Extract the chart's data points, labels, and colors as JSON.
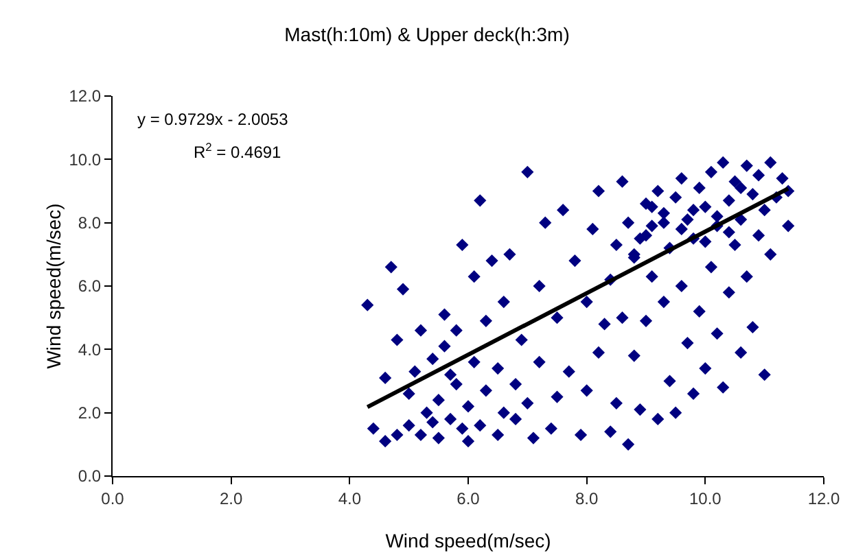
{
  "chart_data": {
    "type": "scatter",
    "title": "Mast(h:10m) & Upper deck(h:3m)",
    "xlabel": "Wind speed(m/sec)",
    "ylabel": "Wind speed(m/sec)",
    "xlim": [
      0,
      12
    ],
    "ylim": [
      0,
      12
    ],
    "xticks": [
      {
        "value": 0,
        "label": "0.0"
      },
      {
        "value": 2,
        "label": "2.0"
      },
      {
        "value": 4,
        "label": "4.0"
      },
      {
        "value": 6,
        "label": "6.0"
      },
      {
        "value": 8,
        "label": "8.0"
      },
      {
        "value": 10,
        "label": "10.0"
      },
      {
        "value": 12,
        "label": "12.0"
      }
    ],
    "yticks": [
      {
        "value": 0,
        "label": "0.0"
      },
      {
        "value": 2,
        "label": "2.0"
      },
      {
        "value": 4,
        "label": "4.0"
      },
      {
        "value": 6,
        "label": "6.0"
      },
      {
        "value": 8,
        "label": "8.0"
      },
      {
        "value": 10,
        "label": "10.0"
      },
      {
        "value": 12,
        "label": "12.0"
      }
    ],
    "grid": false,
    "legend": false,
    "marker": "diamond",
    "annotations": [
      "y = 0.9729x - 2.0053",
      "R$^{2}$ = 0.4691"
    ],
    "series": [
      {
        "color": "#000080",
        "x": [
          4.3,
          4.4,
          4.6,
          4.6,
          4.7,
          4.8,
          4.8,
          4.9,
          5.0,
          5.0,
          5.1,
          5.2,
          5.2,
          5.3,
          5.4,
          5.4,
          5.5,
          5.5,
          5.6,
          5.6,
          5.7,
          5.7,
          5.8,
          5.8,
          5.9,
          5.9,
          6.0,
          6.0,
          6.1,
          6.1,
          6.2,
          6.2,
          6.3,
          6.3,
          6.4,
          6.5,
          6.5,
          6.6,
          6.6,
          6.7,
          6.8,
          6.8,
          6.9,
          7.0,
          7.0,
          7.1,
          7.2,
          7.2,
          7.3,
          7.4,
          7.5,
          7.5,
          7.6,
          7.7,
          7.8,
          7.9,
          8.0,
          8.0,
          8.1,
          8.2,
          8.2,
          8.3,
          8.4,
          8.4,
          8.5,
          8.5,
          8.6,
          8.6,
          8.7,
          8.7,
          8.8,
          8.8,
          8.9,
          8.9,
          9.0,
          9.0,
          9.1,
          9.1,
          9.2,
          9.2,
          9.3,
          9.3,
          9.4,
          9.4,
          9.5,
          9.5,
          9.6,
          9.6,
          9.7,
          9.7,
          9.8,
          9.8,
          9.9,
          9.9,
          10.0,
          10.0,
          10.1,
          10.1,
          10.2,
          10.2,
          10.3,
          10.3,
          10.4,
          10.4,
          10.5,
          10.5,
          10.6,
          10.6,
          10.7,
          10.7,
          10.8,
          10.8,
          10.9,
          10.9,
          11.0,
          11.0,
          11.1,
          11.1,
          11.2,
          11.3,
          11.4,
          11.4,
          9.0,
          9.3,
          9.6,
          9.8,
          10.0,
          10.2,
          10.4,
          10.6,
          8.8,
          9.1
        ],
        "values": [
          5.4,
          1.5,
          1.1,
          3.1,
          6.6,
          1.3,
          4.3,
          5.9,
          2.6,
          1.6,
          3.3,
          1.3,
          4.6,
          2.0,
          1.7,
          3.7,
          1.2,
          2.4,
          4.1,
          5.1,
          1.8,
          3.2,
          2.9,
          4.6,
          1.5,
          7.3,
          1.1,
          2.2,
          3.6,
          6.3,
          8.7,
          1.6,
          2.7,
          4.9,
          6.8,
          1.3,
          3.4,
          2.0,
          5.5,
          7.0,
          2.9,
          1.8,
          4.3,
          9.6,
          2.3,
          1.2,
          3.6,
          6.0,
          8.0,
          1.5,
          2.5,
          5.0,
          8.4,
          3.3,
          6.8,
          1.3,
          2.7,
          5.5,
          7.8,
          9.0,
          3.9,
          4.8,
          1.4,
          6.2,
          7.3,
          2.3,
          9.3,
          5.0,
          8.0,
          1.0,
          3.8,
          6.9,
          7.5,
          2.1,
          8.6,
          4.9,
          6.3,
          7.9,
          1.8,
          9.0,
          5.5,
          8.3,
          3.0,
          7.2,
          8.8,
          2.0,
          6.0,
          9.4,
          4.2,
          8.1,
          7.5,
          2.6,
          9.1,
          5.2,
          8.5,
          3.4,
          9.6,
          6.6,
          7.9,
          4.5,
          9.9,
          2.8,
          8.7,
          5.8,
          9.3,
          7.3,
          3.9,
          8.1,
          9.8,
          6.3,
          8.9,
          4.7,
          9.5,
          7.6,
          8.4,
          3.2,
          9.9,
          7.0,
          8.8,
          9.4,
          7.9,
          9.0,
          7.6,
          8.0,
          7.8,
          8.4,
          7.4,
          8.2,
          7.7,
          9.1,
          7.0,
          8.5
        ]
      },
      {
        "type": "line",
        "marker": "none",
        "color": "#000000",
        "x": [
          4.3,
          11.4
        ],
        "values": [
          2.18,
          9.08
        ]
      }
    ]
  }
}
